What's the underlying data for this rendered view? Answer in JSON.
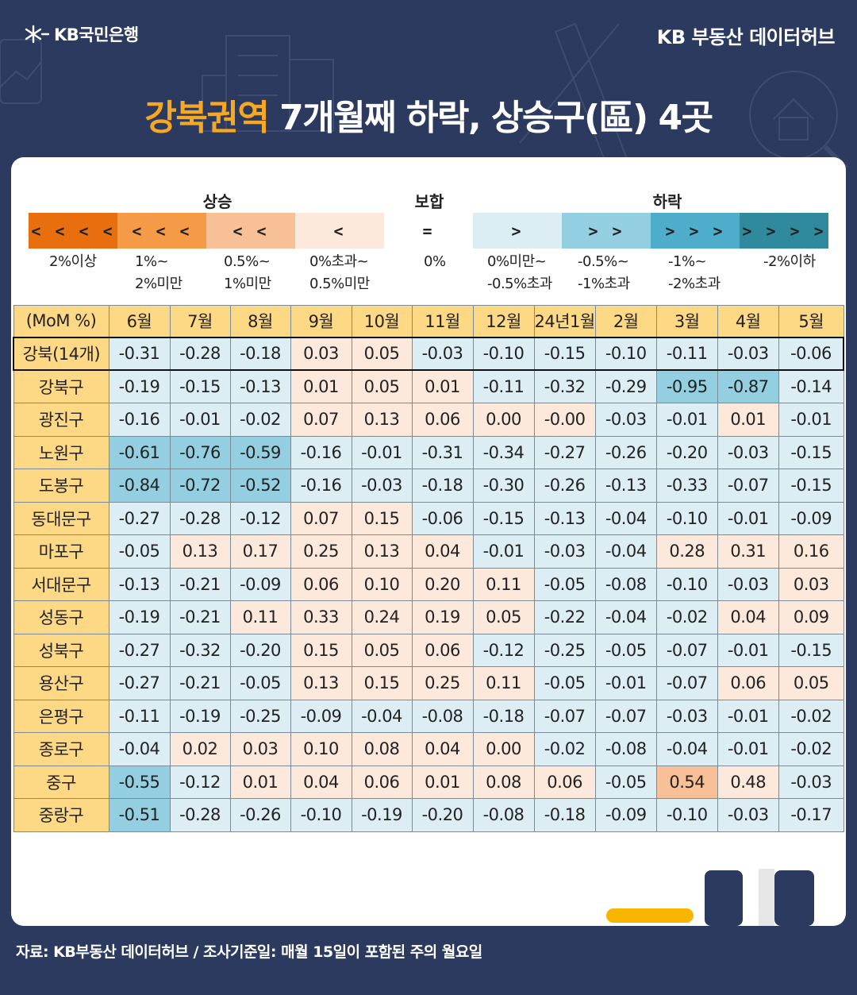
{
  "header": {
    "logo_text": "KB국민은행",
    "hub_text": "KB 부동산  데이터허브"
  },
  "title": {
    "highlight": "강북권역",
    "rest": " 7개월째 하락, 상승구(區) 4곳"
  },
  "legend": {
    "groups": [
      {
        "label": "상승",
        "center": 260
      },
      {
        "label": "보합",
        "center": 527
      },
      {
        "label": "하락",
        "center": 827
      }
    ],
    "items": [
      {
        "symbol": "< < < <",
        "color": "#e86e0e",
        "label": "2%이상"
      },
      {
        "symbol": "< < <",
        "color": "#f59a47",
        "label": "1%~\n2%미만"
      },
      {
        "symbol": "< <",
        "color": "#f8c097",
        "label": "0.5%~\n1%미만"
      },
      {
        "symbol": "<",
        "color": "#fde8dc",
        "label": "0%초과~\n0.5%미만"
      },
      {
        "symbol": "=",
        "color": "#ffffff",
        "label": "0%"
      },
      {
        "symbol": ">",
        "color": "#dceef4",
        "label": "0%미만~\n-0.5%초과"
      },
      {
        "symbol": "> >",
        "color": "#93cfe0",
        "label": "-0.5%~\n-1%초과"
      },
      {
        "symbol": "> > >",
        "color": "#4eadcb",
        "label": "-1%~\n-2%초과"
      },
      {
        "symbol": "> > > >",
        "color": "#2e8a9c",
        "label": "-2%이하"
      }
    ]
  },
  "chart_data": {
    "type": "table",
    "title": "강북권역 7개월째 하락, 상승구(區) 4곳",
    "unit_header": "(MoM %)",
    "columns": [
      "6월",
      "7월",
      "8월",
      "9월",
      "10월",
      "11월",
      "12월",
      "24년1월",
      "2월",
      "3월",
      "4월",
      "5월"
    ],
    "rows": [
      {
        "name": "강북(14개)",
        "summary": true,
        "values": [
          "-0.31",
          "-0.28",
          "-0.18",
          "0.03",
          "0.05",
          "-0.03",
          "-0.10",
          "-0.15",
          "-0.10",
          "-0.11",
          "-0.03",
          "-0.06"
        ]
      },
      {
        "name": "강북구",
        "values": [
          "-0.19",
          "-0.15",
          "-0.13",
          "0.01",
          "0.05",
          "0.01",
          "-0.11",
          "-0.32",
          "-0.29",
          "-0.95",
          "-0.87",
          "-0.14"
        ]
      },
      {
        "name": "광진구",
        "values": [
          "-0.16",
          "-0.01",
          "-0.02",
          "0.07",
          "0.13",
          "0.06",
          "0.00",
          "-0.00",
          "-0.03",
          "-0.01",
          "0.01",
          "-0.01"
        ]
      },
      {
        "name": "노원구",
        "values": [
          "-0.61",
          "-0.76",
          "-0.59",
          "-0.16",
          "-0.01",
          "-0.31",
          "-0.34",
          "-0.27",
          "-0.26",
          "-0.20",
          "-0.03",
          "-0.15"
        ]
      },
      {
        "name": "도봉구",
        "values": [
          "-0.84",
          "-0.72",
          "-0.52",
          "-0.16",
          "-0.03",
          "-0.18",
          "-0.30",
          "-0.26",
          "-0.13",
          "-0.33",
          "-0.07",
          "-0.15"
        ]
      },
      {
        "name": "동대문구",
        "values": [
          "-0.27",
          "-0.28",
          "-0.12",
          "0.07",
          "0.15",
          "-0.06",
          "-0.15",
          "-0.13",
          "-0.04",
          "-0.10",
          "-0.01",
          "-0.09"
        ]
      },
      {
        "name": "마포구",
        "values": [
          "-0.05",
          "0.13",
          "0.17",
          "0.25",
          "0.13",
          "0.04",
          "-0.01",
          "-0.03",
          "-0.04",
          "0.28",
          "0.31",
          "0.16"
        ]
      },
      {
        "name": "서대문구",
        "values": [
          "-0.13",
          "-0.21",
          "-0.09",
          "0.06",
          "0.10",
          "0.20",
          "0.11",
          "-0.05",
          "-0.08",
          "-0.10",
          "-0.03",
          "0.03"
        ]
      },
      {
        "name": "성동구",
        "values": [
          "-0.19",
          "-0.21",
          "0.11",
          "0.33",
          "0.24",
          "0.19",
          "0.05",
          "-0.22",
          "-0.04",
          "-0.02",
          "0.04",
          "0.09"
        ]
      },
      {
        "name": "성북구",
        "values": [
          "-0.27",
          "-0.32",
          "-0.20",
          "0.15",
          "0.05",
          "0.06",
          "-0.12",
          "-0.25",
          "-0.05",
          "-0.07",
          "-0.01",
          "-0.15"
        ]
      },
      {
        "name": "용산구",
        "values": [
          "-0.27",
          "-0.21",
          "-0.05",
          "0.13",
          "0.15",
          "0.25",
          "0.11",
          "-0.05",
          "-0.01",
          "-0.07",
          "0.06",
          "0.05"
        ]
      },
      {
        "name": "은평구",
        "values": [
          "-0.11",
          "-0.19",
          "-0.25",
          "-0.09",
          "-0.04",
          "-0.08",
          "-0.18",
          "-0.07",
          "-0.07",
          "-0.03",
          "-0.01",
          "-0.02"
        ]
      },
      {
        "name": "종로구",
        "values": [
          "-0.04",
          "0.02",
          "0.03",
          "0.10",
          "0.08",
          "0.04",
          "0.00",
          "-0.02",
          "-0.08",
          "-0.04",
          "-0.01",
          "-0.02"
        ]
      },
      {
        "name": "중구",
        "values": [
          "-0.55",
          "-0.12",
          "0.01",
          "0.04",
          "0.06",
          "0.01",
          "0.08",
          "0.06",
          "-0.05",
          "0.54",
          "0.48",
          "-0.03"
        ]
      },
      {
        "name": "중랑구",
        "values": [
          "-0.51",
          "-0.28",
          "-0.26",
          "-0.10",
          "-0.19",
          "-0.20",
          "-0.08",
          "-0.18",
          "-0.09",
          "-0.10",
          "-0.03",
          "-0.17"
        ]
      }
    ]
  },
  "colors": {
    "background": "#2b3a5e",
    "accent": "#f7a823",
    "header_cell": "#fdd885",
    "zero": "#fde8dc"
  },
  "source": "자료: KB부동산 데이터허브 / 조사기준일: 매월 15일이 포함된 주의 월요일"
}
